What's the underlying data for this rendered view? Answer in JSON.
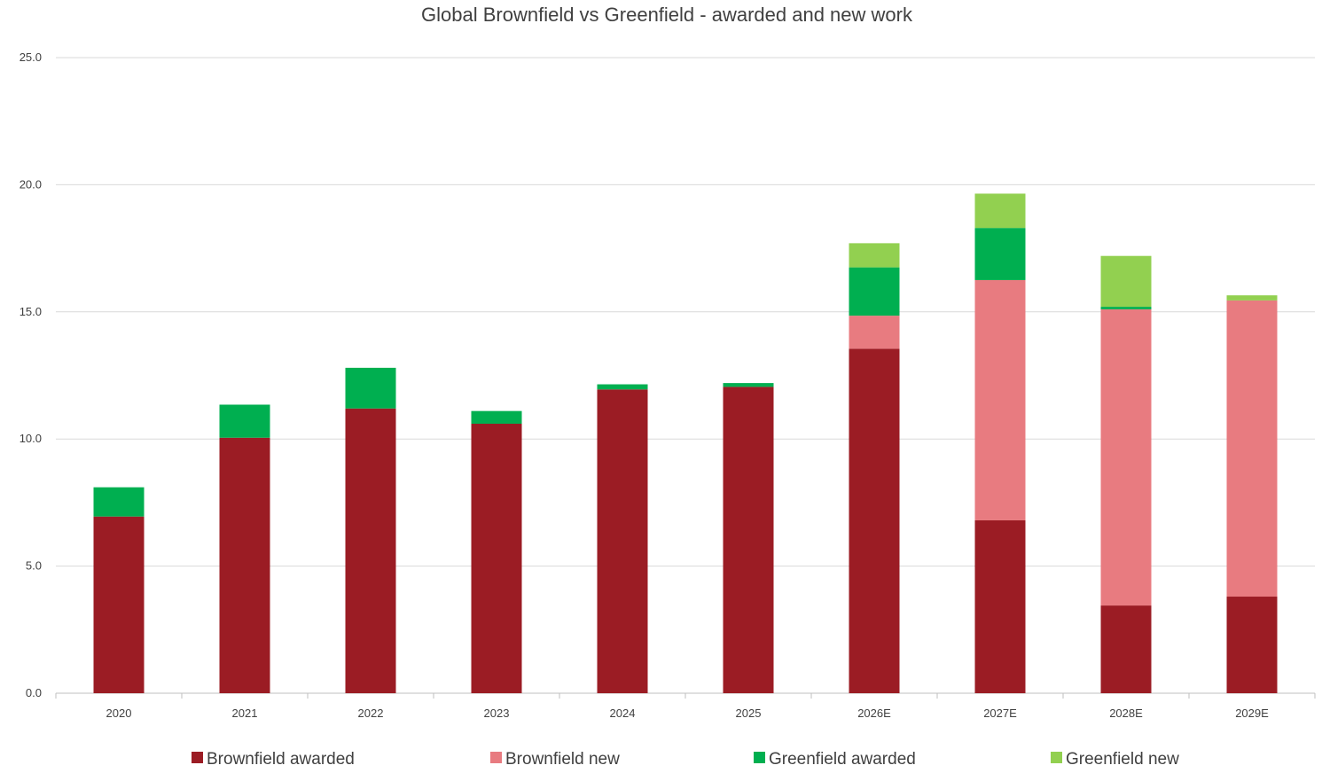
{
  "chart_data": {
    "type": "bar",
    "stacked": true,
    "title": "Global Brownfield vs Greenfield - awarded and new work",
    "xlabel": "",
    "ylabel": "",
    "ylim": [
      0,
      25
    ],
    "yticks": [
      "0.0",
      "5.0",
      "10.0",
      "15.0",
      "20.0",
      "25.0"
    ],
    "grid": true,
    "legend_position": "bottom",
    "categories": [
      "2020",
      "2021",
      "2022",
      "2023",
      "2024",
      "2025",
      "2026E",
      "2027E",
      "2028E",
      "2029E"
    ],
    "series": [
      {
        "name": "Brownfield awarded",
        "color": "#9B1C24",
        "values": [
          6.95,
          10.05,
          11.2,
          10.6,
          11.95,
          12.05,
          13.55,
          6.8,
          3.45,
          3.8
        ]
      },
      {
        "name": "Brownfield new",
        "color": "#E87B80",
        "values": [
          0,
          0,
          0,
          0,
          0,
          0,
          1.3,
          9.45,
          11.65,
          11.65
        ]
      },
      {
        "name": "Greenfield awarded",
        "color": "#00AF50",
        "values": [
          1.15,
          1.3,
          1.6,
          0.5,
          0.2,
          0.15,
          1.9,
          2.05,
          0.1,
          0
        ]
      },
      {
        "name": "Greenfield new",
        "color": "#92D050",
        "values": [
          0,
          0,
          0,
          0,
          0,
          0,
          0.95,
          1.35,
          2.0,
          0.2
        ]
      }
    ]
  }
}
